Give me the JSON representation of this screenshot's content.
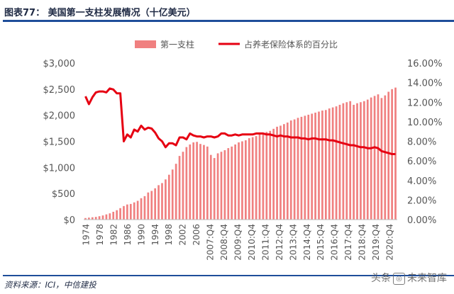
{
  "title": "图表77：  美国第一支柱发展情况（十亿美元）",
  "source": "资料来源：ICI，中信建投",
  "watermark": {
    "left": "头条",
    "right": "未来智库"
  },
  "chart_data": {
    "type": "bar+line",
    "legend": [
      "第一支柱",
      "占养老保险体系的百分比"
    ],
    "legend_position": "top",
    "left_axis": {
      "ticks": [
        "$0",
        "$500",
        "$1,000",
        "$1,500",
        "$2,000",
        "$2,500",
        "$3,000"
      ],
      "min": 0,
      "max": 3000
    },
    "right_axis": {
      "ticks": [
        "0.00%",
        "2.00%",
        "4.00%",
        "6.00%",
        "8.00%",
        "10.00%",
        "12.00%",
        "14.00%",
        "16.00%"
      ],
      "min": 0,
      "max": 16
    },
    "x_tick_labels": [
      "1974",
      "1978",
      "1982",
      "1986",
      "1990",
      "1994",
      "1998",
      "2002",
      "2006",
      "2007:Q4",
      "2008:Q4",
      "2009:Q4",
      "2010:Q4",
      "2011:Q4",
      "2012:Q4",
      "2013:Q4",
      "2014:Q4",
      "2015:Q4",
      "2016:Q4",
      "2017:Q4",
      "2018:Q4",
      "2019:Q4",
      "2020:Q4"
    ],
    "series": [
      {
        "name": "第一支柱",
        "kind": "bar",
        "color": "#f08080",
        "values": [
          30,
          38,
          45,
          52,
          65,
          80,
          100,
          120,
          150,
          180,
          220,
          260,
          290,
          300,
          330,
          360,
          410,
          450,
          520,
          550,
          600,
          660,
          700,
          770,
          860,
          960,
          1070,
          1220,
          1300,
          1390,
          1440,
          1480,
          1490,
          1450,
          1430,
          1400,
          1240,
          1180,
          1270,
          1300,
          1330,
          1370,
          1400,
          1440,
          1480,
          1500,
          1520,
          1560,
          1580,
          1600,
          1640,
          1660,
          1680,
          1700,
          1740,
          1780,
          1800,
          1830,
          1860,
          1900,
          1920,
          1950,
          1970,
          1990,
          2010,
          2030,
          2050,
          2070,
          2090,
          2100,
          2130,
          2150,
          2170,
          2200,
          2230,
          2250,
          2270,
          2200,
          2230,
          2250,
          2270,
          2300,
          2340,
          2370,
          2400,
          2330,
          2380,
          2450,
          2500,
          2530
        ]
      },
      {
        "name": "占养老保险体系的百分比",
        "kind": "line",
        "color": "#e60012",
        "values": [
          12.6,
          11.8,
          12.5,
          13.0,
          13.1,
          13.1,
          13.0,
          13.4,
          13.3,
          12.9,
          12.9,
          8.0,
          8.7,
          8.4,
          9.2,
          9.0,
          9.6,
          9.2,
          9.4,
          9.3,
          8.9,
          8.3,
          8.0,
          7.4,
          7.8,
          7.8,
          7.6,
          8.4,
          8.4,
          8.2,
          8.8,
          8.6,
          8.5,
          8.5,
          8.4,
          8.5,
          8.5,
          8.4,
          8.5,
          8.8,
          8.8,
          8.6,
          8.6,
          8.7,
          8.6,
          8.7,
          8.7,
          8.7,
          8.7,
          8.8,
          8.8,
          8.8,
          8.7,
          8.7,
          8.6,
          8.5,
          8.6,
          8.5,
          8.5,
          8.4,
          8.4,
          8.4,
          8.3,
          8.3,
          8.2,
          8.3,
          8.3,
          8.2,
          8.2,
          8.2,
          8.1,
          8.1,
          8.0,
          7.9,
          7.8,
          7.7,
          7.6,
          7.6,
          7.5,
          7.4,
          7.4,
          7.3,
          7.3,
          7.4,
          7.3,
          7.0,
          6.9,
          6.8,
          6.7,
          6.7
        ]
      }
    ]
  }
}
